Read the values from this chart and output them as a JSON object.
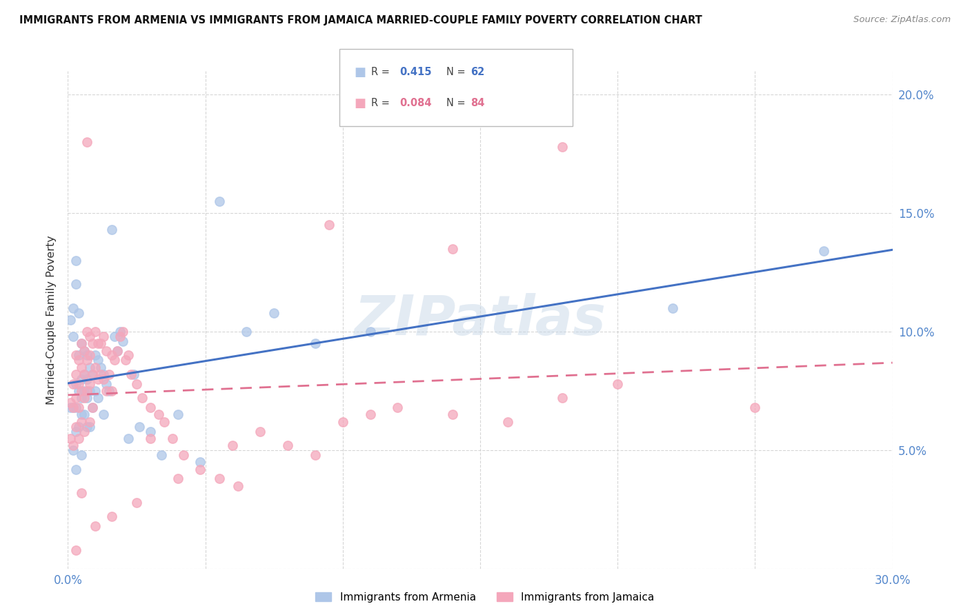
{
  "title": "IMMIGRANTS FROM ARMENIA VS IMMIGRANTS FROM JAMAICA MARRIED-COUPLE FAMILY POVERTY CORRELATION CHART",
  "source": "Source: ZipAtlas.com",
  "ylabel": "Married-Couple Family Poverty",
  "xlim": [
    0.0,
    0.3
  ],
  "ylim": [
    0.0,
    0.21
  ],
  "xtick_vals": [
    0.0,
    0.05,
    0.1,
    0.15,
    0.2,
    0.25,
    0.3
  ],
  "xticklabels": [
    "0.0%",
    "",
    "",
    "",
    "",
    "",
    "30.0%"
  ],
  "ytick_vals": [
    0.0,
    0.05,
    0.1,
    0.15,
    0.2
  ],
  "yticklabels": [
    "",
    "5.0%",
    "10.0%",
    "15.0%",
    "20.0%"
  ],
  "armenia_color": "#aec6e8",
  "jamaica_color": "#f4a7bb",
  "armenia_line_color": "#4472c4",
  "jamaica_line_color": "#e07090",
  "armenia_R": 0.415,
  "armenia_N": 62,
  "jamaica_R": 0.084,
  "jamaica_N": 84,
  "legend_label_armenia": "Immigrants from Armenia",
  "legend_label_jamaica": "Immigrants from Jamaica",
  "armenia_x": [
    0.001,
    0.001,
    0.002,
    0.002,
    0.002,
    0.002,
    0.003,
    0.003,
    0.003,
    0.003,
    0.003,
    0.003,
    0.004,
    0.004,
    0.004,
    0.004,
    0.005,
    0.005,
    0.005,
    0.005,
    0.005,
    0.006,
    0.006,
    0.006,
    0.006,
    0.007,
    0.007,
    0.007,
    0.007,
    0.008,
    0.008,
    0.008,
    0.009,
    0.009,
    0.01,
    0.01,
    0.011,
    0.011,
    0.012,
    0.013,
    0.013,
    0.014,
    0.015,
    0.016,
    0.017,
    0.018,
    0.019,
    0.02,
    0.022,
    0.024,
    0.026,
    0.03,
    0.034,
    0.04,
    0.048,
    0.055,
    0.065,
    0.075,
    0.09,
    0.11,
    0.22,
    0.275
  ],
  "armenia_y": [
    0.105,
    0.068,
    0.11,
    0.098,
    0.068,
    0.05,
    0.13,
    0.12,
    0.078,
    0.068,
    0.058,
    0.042,
    0.108,
    0.09,
    0.075,
    0.06,
    0.095,
    0.08,
    0.072,
    0.065,
    0.048,
    0.092,
    0.082,
    0.075,
    0.065,
    0.09,
    0.08,
    0.072,
    0.06,
    0.085,
    0.075,
    0.06,
    0.082,
    0.068,
    0.09,
    0.075,
    0.088,
    0.072,
    0.085,
    0.082,
    0.065,
    0.078,
    0.075,
    0.143,
    0.098,
    0.092,
    0.1,
    0.096,
    0.055,
    0.082,
    0.06,
    0.058,
    0.048,
    0.065,
    0.045,
    0.155,
    0.1,
    0.108,
    0.095,
    0.1,
    0.11,
    0.134
  ],
  "jamaica_x": [
    0.001,
    0.001,
    0.002,
    0.002,
    0.002,
    0.003,
    0.003,
    0.003,
    0.003,
    0.004,
    0.004,
    0.004,
    0.004,
    0.005,
    0.005,
    0.005,
    0.005,
    0.006,
    0.006,
    0.006,
    0.006,
    0.007,
    0.007,
    0.007,
    0.008,
    0.008,
    0.008,
    0.008,
    0.009,
    0.009,
    0.009,
    0.01,
    0.01,
    0.011,
    0.011,
    0.012,
    0.012,
    0.013,
    0.013,
    0.014,
    0.014,
    0.015,
    0.016,
    0.016,
    0.017,
    0.018,
    0.019,
    0.02,
    0.021,
    0.022,
    0.023,
    0.025,
    0.027,
    0.03,
    0.033,
    0.035,
    0.038,
    0.042,
    0.048,
    0.055,
    0.062,
    0.07,
    0.08,
    0.09,
    0.1,
    0.11,
    0.12,
    0.14,
    0.16,
    0.18,
    0.2,
    0.14,
    0.095,
    0.06,
    0.04,
    0.025,
    0.016,
    0.01,
    0.007,
    0.005,
    0.003,
    0.03,
    0.18,
    0.25
  ],
  "jamaica_y": [
    0.07,
    0.055,
    0.078,
    0.068,
    0.052,
    0.09,
    0.082,
    0.072,
    0.06,
    0.088,
    0.078,
    0.068,
    0.055,
    0.095,
    0.085,
    0.075,
    0.062,
    0.092,
    0.082,
    0.072,
    0.058,
    0.1,
    0.088,
    0.075,
    0.098,
    0.09,
    0.078,
    0.062,
    0.095,
    0.082,
    0.068,
    0.1,
    0.085,
    0.095,
    0.08,
    0.095,
    0.082,
    0.098,
    0.08,
    0.092,
    0.075,
    0.082,
    0.09,
    0.075,
    0.088,
    0.092,
    0.098,
    0.1,
    0.088,
    0.09,
    0.082,
    0.078,
    0.072,
    0.068,
    0.065,
    0.062,
    0.055,
    0.048,
    0.042,
    0.038,
    0.035,
    0.058,
    0.052,
    0.048,
    0.062,
    0.065,
    0.068,
    0.065,
    0.062,
    0.072,
    0.078,
    0.135,
    0.145,
    0.052,
    0.038,
    0.028,
    0.022,
    0.018,
    0.18,
    0.032,
    0.008,
    0.055,
    0.178,
    0.068
  ]
}
